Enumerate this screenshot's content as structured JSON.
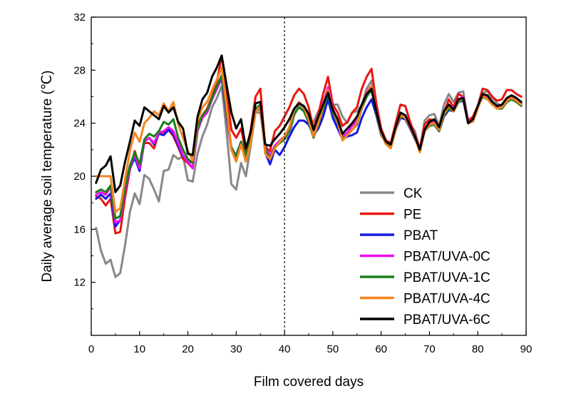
{
  "chart_data": {
    "type": "line",
    "title": "",
    "xlabel": "Film covered days",
    "ylabel": "Daily average soil temperature (℃)",
    "xlim": [
      0,
      90
    ],
    "ylim": [
      8,
      32
    ],
    "xticks": [
      "0",
      "10",
      "20",
      "30",
      "40",
      "50",
      "60",
      "70",
      "80",
      "90"
    ],
    "yticks": [
      "12",
      "16",
      "20",
      "24",
      "28",
      "32"
    ],
    "vline": 40,
    "legend_position": "lower-right",
    "x": [
      1,
      2,
      3,
      4,
      5,
      6,
      7,
      8,
      9,
      10,
      11,
      12,
      13,
      14,
      15,
      16,
      17,
      18,
      19,
      20,
      21,
      22,
      23,
      24,
      25,
      26,
      27,
      28,
      29,
      30,
      31,
      32,
      33,
      34,
      35,
      36,
      37,
      38,
      39,
      40,
      41,
      42,
      43,
      44,
      45,
      46,
      47,
      48,
      49,
      50,
      51,
      52,
      53,
      54,
      55,
      56,
      57,
      58,
      59,
      60,
      61,
      62,
      63,
      64,
      65,
      66,
      67,
      68,
      69,
      70,
      71,
      72,
      73,
      74,
      75,
      76,
      77,
      78,
      79,
      80,
      81,
      82,
      83,
      84,
      85,
      86,
      87,
      88,
      89
    ],
    "series": [
      {
        "name": "CK",
        "color": "#888888",
        "values": [
          16.1,
          14.4,
          13.4,
          13.7,
          12.4,
          12.7,
          14.8,
          17.3,
          18.7,
          17.9,
          20.1,
          19.8,
          19.0,
          18.1,
          20.4,
          20.5,
          21.6,
          21.3,
          21.5,
          19.7,
          19.6,
          21.7,
          23.0,
          23.9,
          25.2,
          25.9,
          26.8,
          23.4,
          19.4,
          19.0,
          21.0,
          20.0,
          22.3,
          24.8,
          24.8,
          22.4,
          21.6,
          22.1,
          22.6,
          22.8,
          23.1,
          24.6,
          25.3,
          25.0,
          24.0,
          24.1,
          24.9,
          25.4,
          26.1,
          25.4,
          25.4,
          24.5,
          24.0,
          24.8,
          24.9,
          25.4,
          26.6,
          27.2,
          25.0,
          23.4,
          22.7,
          22.4,
          23.6,
          24.4,
          24.6,
          23.9,
          23.4,
          22.0,
          24.2,
          24.6,
          24.7,
          23.8,
          25.4,
          26.2,
          25.6,
          26.3,
          26.4,
          24.1,
          24.2,
          25.1,
          26.3,
          26.4,
          25.9,
          25.5,
          25.3,
          25.7,
          25.9,
          25.8,
          25.6
        ]
      },
      {
        "name": "PE",
        "color": "#e8170f",
        "values": [
          18.5,
          18.3,
          17.8,
          18.3,
          15.7,
          15.8,
          18.4,
          20.5,
          21.9,
          20.8,
          22.5,
          22.5,
          22.1,
          23.3,
          23.3,
          23.5,
          23.0,
          22.2,
          21.3,
          21.0,
          20.6,
          23.8,
          24.6,
          25.1,
          26.0,
          27.1,
          29.1,
          26.4,
          23.5,
          22.9,
          23.6,
          21.8,
          23.5,
          26.0,
          26.6,
          22.2,
          21.9,
          23.4,
          23.8,
          24.5,
          25.2,
          26.1,
          26.6,
          26.2,
          25.2,
          23.6,
          24.7,
          26.2,
          27.5,
          25.4,
          24.8,
          23.8,
          24.1,
          24.8,
          25.2,
          26.6,
          27.5,
          28.1,
          25.5,
          23.6,
          22.7,
          22.5,
          24.0,
          25.4,
          25.3,
          24.1,
          23.1,
          22.1,
          23.9,
          24.3,
          24.2,
          23.4,
          24.8,
          25.8,
          25.2,
          26.2,
          26.0,
          24.2,
          24.5,
          25.3,
          26.6,
          26.5,
          26.0,
          25.7,
          25.8,
          26.5,
          26.5,
          26.2,
          26.0
        ]
      },
      {
        "name": "PBAT",
        "color": "#1518e3",
        "values": [
          18.3,
          18.6,
          18.3,
          18.7,
          16.2,
          16.7,
          18.9,
          20.6,
          21.4,
          20.4,
          22.6,
          22.9,
          22.4,
          23.2,
          23.1,
          23.5,
          23.2,
          22.3,
          21.5,
          21.2,
          21.0,
          23.5,
          24.5,
          24.9,
          25.8,
          26.6,
          27.4,
          24.6,
          22.0,
          21.6,
          22.6,
          21.2,
          22.6,
          24.9,
          25.1,
          21.8,
          20.9,
          22.0,
          21.6,
          22.2,
          23.0,
          23.7,
          24.2,
          24.2,
          23.9,
          23.1,
          23.6,
          24.5,
          25.8,
          24.4,
          23.6,
          22.8,
          23.0,
          23.1,
          23.3,
          24.4,
          25.2,
          25.8,
          24.6,
          23.1,
          22.5,
          22.3,
          23.5,
          24.4,
          24.3,
          23.6,
          22.8,
          22.0,
          23.4,
          23.9,
          23.9,
          23.4,
          24.5,
          25.0,
          24.9,
          25.6,
          25.7,
          24.0,
          24.2,
          25.2,
          26.0,
          25.9,
          25.5,
          25.2,
          25.2,
          25.6,
          25.8,
          25.6,
          25.4
        ]
      },
      {
        "name": "PBAT/UVA-0C",
        "color": "#f10ff1",
        "values": [
          18.6,
          18.8,
          18.6,
          19.2,
          16.5,
          16.7,
          19.0,
          20.7,
          21.6,
          20.6,
          22.6,
          22.9,
          22.5,
          23.3,
          23.4,
          23.7,
          23.4,
          22.5,
          21.6,
          21.1,
          20.6,
          23.4,
          24.4,
          24.8,
          25.8,
          26.6,
          27.6,
          24.8,
          22.0,
          21.2,
          22.4,
          21.3,
          22.7,
          25.0,
          25.2,
          22.1,
          21.5,
          22.3,
          22.7,
          23.0,
          23.7,
          25.0,
          25.6,
          25.2,
          24.4,
          23.1,
          24.2,
          25.5,
          26.7,
          25.1,
          24.2,
          23.0,
          23.3,
          23.8,
          24.2,
          25.3,
          26.4,
          26.8,
          25.0,
          23.3,
          22.6,
          22.3,
          23.7,
          24.6,
          24.5,
          23.8,
          23.0,
          22.0,
          23.5,
          24.0,
          24.1,
          23.6,
          24.8,
          25.4,
          25.1,
          25.8,
          26.0,
          24.1,
          24.3,
          25.3,
          26.1,
          26.0,
          25.6,
          25.3,
          25.3,
          25.8,
          26.0,
          25.8,
          25.5
        ]
      },
      {
        "name": "PBAT/UVA-1C",
        "color": "#1b7e1b",
        "values": [
          18.8,
          19.0,
          18.8,
          19.3,
          16.8,
          17.0,
          19.2,
          20.8,
          21.8,
          20.9,
          22.8,
          23.2,
          23.0,
          23.4,
          24.1,
          23.9,
          24.3,
          22.9,
          22.0,
          21.3,
          21.0,
          23.6,
          24.6,
          25.0,
          25.9,
          26.8,
          27.6,
          24.9,
          22.2,
          21.5,
          22.6,
          21.5,
          22.9,
          25.1,
          25.4,
          22.0,
          21.3,
          22.2,
          22.5,
          22.8,
          23.5,
          24.7,
          25.2,
          24.9,
          24.1,
          22.9,
          23.9,
          25.1,
          26.2,
          24.8,
          24.0,
          22.8,
          23.1,
          23.5,
          23.9,
          25.1,
          26.0,
          26.5,
          24.8,
          23.2,
          22.5,
          22.2,
          23.6,
          24.5,
          24.4,
          23.7,
          22.9,
          21.9,
          23.4,
          23.8,
          23.9,
          23.4,
          24.6,
          25.1,
          24.9,
          25.6,
          25.8,
          24.0,
          24.2,
          25.2,
          26.0,
          25.8,
          25.4,
          25.1,
          25.1,
          25.6,
          25.8,
          25.6,
          25.3
        ]
      },
      {
        "name": "PBAT/UVA-4C",
        "color": "#f6851f",
        "values": [
          20.0,
          20.0,
          20.0,
          20.0,
          17.3,
          17.6,
          19.8,
          21.9,
          23.3,
          22.6,
          24.0,
          24.4,
          24.9,
          24.6,
          25.5,
          24.9,
          25.6,
          23.9,
          22.9,
          21.9,
          21.2,
          24.2,
          25.2,
          25.6,
          26.5,
          27.3,
          28.2,
          25.3,
          22.0,
          21.1,
          22.4,
          21.1,
          22.5,
          24.8,
          25.3,
          21.7,
          21.3,
          22.1,
          22.6,
          23.0,
          23.7,
          25.0,
          25.6,
          25.2,
          24.3,
          23.0,
          24.0,
          25.3,
          26.5,
          25.0,
          24.1,
          22.7,
          23.1,
          23.5,
          24.0,
          25.2,
          26.3,
          26.8,
          24.9,
          23.2,
          22.4,
          22.1,
          23.5,
          24.6,
          24.4,
          23.7,
          22.9,
          21.8,
          23.4,
          23.9,
          24.0,
          23.5,
          24.7,
          25.3,
          24.9,
          25.7,
          25.9,
          24.0,
          24.1,
          25.1,
          26.1,
          25.8,
          25.4,
          25.1,
          25.2,
          25.7,
          25.9,
          25.7,
          25.4
        ]
      },
      {
        "name": "PBAT/UVA-6C",
        "color": "#000000",
        "values": [
          19.5,
          20.5,
          20.8,
          21.5,
          18.8,
          19.3,
          21.1,
          22.6,
          24.2,
          23.8,
          25.2,
          24.9,
          24.6,
          24.3,
          25.3,
          24.8,
          25.2,
          24.1,
          23.6,
          21.7,
          21.6,
          24.5,
          25.8,
          26.3,
          27.5,
          28.2,
          29.1,
          26.9,
          24.8,
          23.6,
          24.3,
          22.1,
          23.3,
          25.5,
          25.6,
          22.4,
          22.3,
          22.8,
          23.2,
          23.7,
          24.3,
          25.1,
          25.5,
          25.3,
          24.7,
          23.5,
          24.5,
          25.4,
          26.3,
          25.0,
          24.3,
          23.2,
          23.6,
          24.0,
          24.5,
          25.4,
          26.2,
          26.6,
          24.9,
          23.4,
          22.6,
          22.4,
          23.7,
          24.8,
          24.6,
          23.8,
          23.0,
          22.0,
          23.5,
          24.1,
          24.3,
          23.7,
          24.9,
          25.4,
          25.0,
          25.8,
          25.9,
          24.0,
          24.3,
          25.3,
          26.2,
          26.1,
          25.6,
          25.3,
          25.4,
          25.9,
          26.1,
          25.9,
          25.6
        ]
      }
    ]
  }
}
